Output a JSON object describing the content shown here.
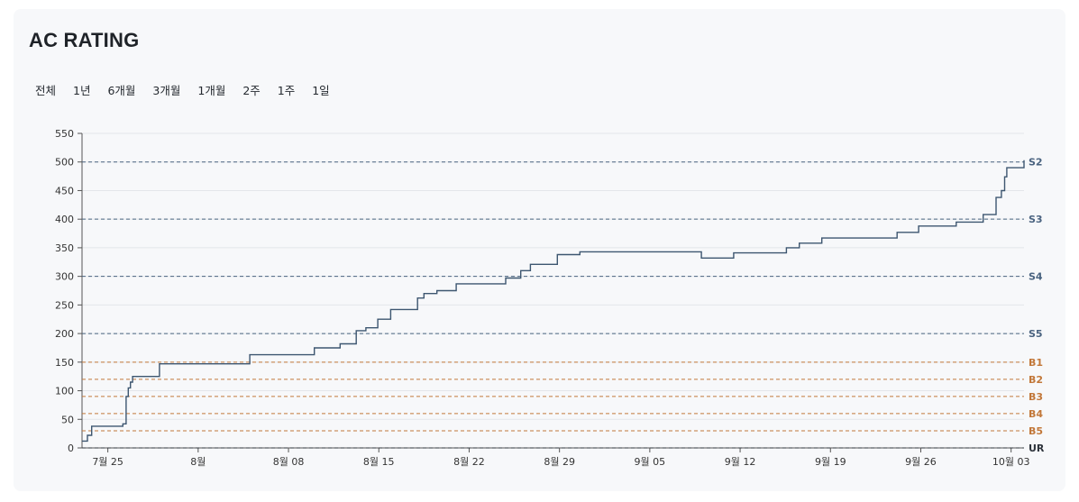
{
  "title": "AC RATING",
  "tabs": [
    "전체",
    "1년",
    "6개월",
    "3개월",
    "1개월",
    "2주",
    "1주",
    "1일"
  ],
  "colors": {
    "line": "#3d5670",
    "tier_s": "#4a6380",
    "tier_b": "#c2783a",
    "tier_ur": "#2d333b",
    "grid": "#e3e6ea"
  },
  "chart_data": {
    "type": "line",
    "title": "",
    "xlabel": "",
    "ylabel": "",
    "ylim": [
      0,
      550
    ],
    "xlim": [
      "2024-07-23",
      "2024-10-04"
    ],
    "yticks": [
      0,
      50,
      100,
      150,
      200,
      250,
      300,
      350,
      400,
      450,
      500,
      550
    ],
    "xticks": [
      {
        "date": "2024-07-25",
        "label": "7월 25"
      },
      {
        "date": "2024-08-01",
        "label": "8월"
      },
      {
        "date": "2024-08-08",
        "label": "8월 08"
      },
      {
        "date": "2024-08-15",
        "label": "8월 15"
      },
      {
        "date": "2024-08-22",
        "label": "8월 22"
      },
      {
        "date": "2024-08-29",
        "label": "8월 29"
      },
      {
        "date": "2024-09-05",
        "label": "9월 05"
      },
      {
        "date": "2024-09-12",
        "label": "9월 12"
      },
      {
        "date": "2024-09-19",
        "label": "9월 19"
      },
      {
        "date": "2024-09-26",
        "label": "9월 26"
      },
      {
        "date": "2024-10-03",
        "label": "10월 03"
      }
    ],
    "tiers": [
      {
        "label": "S2",
        "value": 500,
        "group": "S"
      },
      {
        "label": "S3",
        "value": 400,
        "group": "S"
      },
      {
        "label": "S4",
        "value": 300,
        "group": "S"
      },
      {
        "label": "S5",
        "value": 200,
        "group": "S"
      },
      {
        "label": "B1",
        "value": 150,
        "group": "B"
      },
      {
        "label": "B2",
        "value": 120,
        "group": "B"
      },
      {
        "label": "B3",
        "value": 90,
        "group": "B"
      },
      {
        "label": "B4",
        "value": 60,
        "group": "B"
      },
      {
        "label": "B5",
        "value": 30,
        "group": "B"
      },
      {
        "label": "UR",
        "value": 0,
        "group": "UR"
      }
    ],
    "series": [
      {
        "points": [
          [
            "2024-07-23 00:00",
            12
          ],
          [
            "2024-07-23 10:00",
            22
          ],
          [
            "2024-07-23 18:00",
            38
          ],
          [
            "2024-07-26 04:00",
            42
          ],
          [
            "2024-07-26 10:00",
            90
          ],
          [
            "2024-07-26 14:00",
            105
          ],
          [
            "2024-07-26 18:00",
            115
          ],
          [
            "2024-07-26 22:00",
            125
          ],
          [
            "2024-07-29 00:00",
            147
          ],
          [
            "2024-08-05 00:00",
            163
          ],
          [
            "2024-08-10 00:00",
            175
          ],
          [
            "2024-08-12 00:00",
            182
          ],
          [
            "2024-08-13 06:00",
            205
          ],
          [
            "2024-08-14 00:00",
            210
          ],
          [
            "2024-08-14 22:00",
            225
          ],
          [
            "2024-08-15 22:00",
            242
          ],
          [
            "2024-08-18 00:00",
            262
          ],
          [
            "2024-08-18 12:00",
            270
          ],
          [
            "2024-08-19 12:00",
            275
          ],
          [
            "2024-08-21 00:00",
            287
          ],
          [
            "2024-08-24 20:00",
            297
          ],
          [
            "2024-08-26 00:00",
            310
          ],
          [
            "2024-08-26 18:00",
            321
          ],
          [
            "2024-08-28 20:00",
            338
          ],
          [
            "2024-08-30 14:00",
            343
          ],
          [
            "2024-09-09 00:00",
            332
          ],
          [
            "2024-09-11 12:00",
            341
          ],
          [
            "2024-09-15 14:00",
            350
          ],
          [
            "2024-09-16 14:00",
            358
          ],
          [
            "2024-09-18 08:00",
            367
          ],
          [
            "2024-09-24 04:00",
            377
          ],
          [
            "2024-09-25 20:00",
            388
          ],
          [
            "2024-09-28 18:00",
            395
          ],
          [
            "2024-09-30 20:00",
            408
          ],
          [
            "2024-10-01 20:00",
            438
          ],
          [
            "2024-10-02 06:00",
            450
          ],
          [
            "2024-10-02 12:00",
            474
          ],
          [
            "2024-10-02 16:00",
            490
          ],
          [
            "2024-10-04 00:00",
            503
          ]
        ]
      }
    ]
  }
}
